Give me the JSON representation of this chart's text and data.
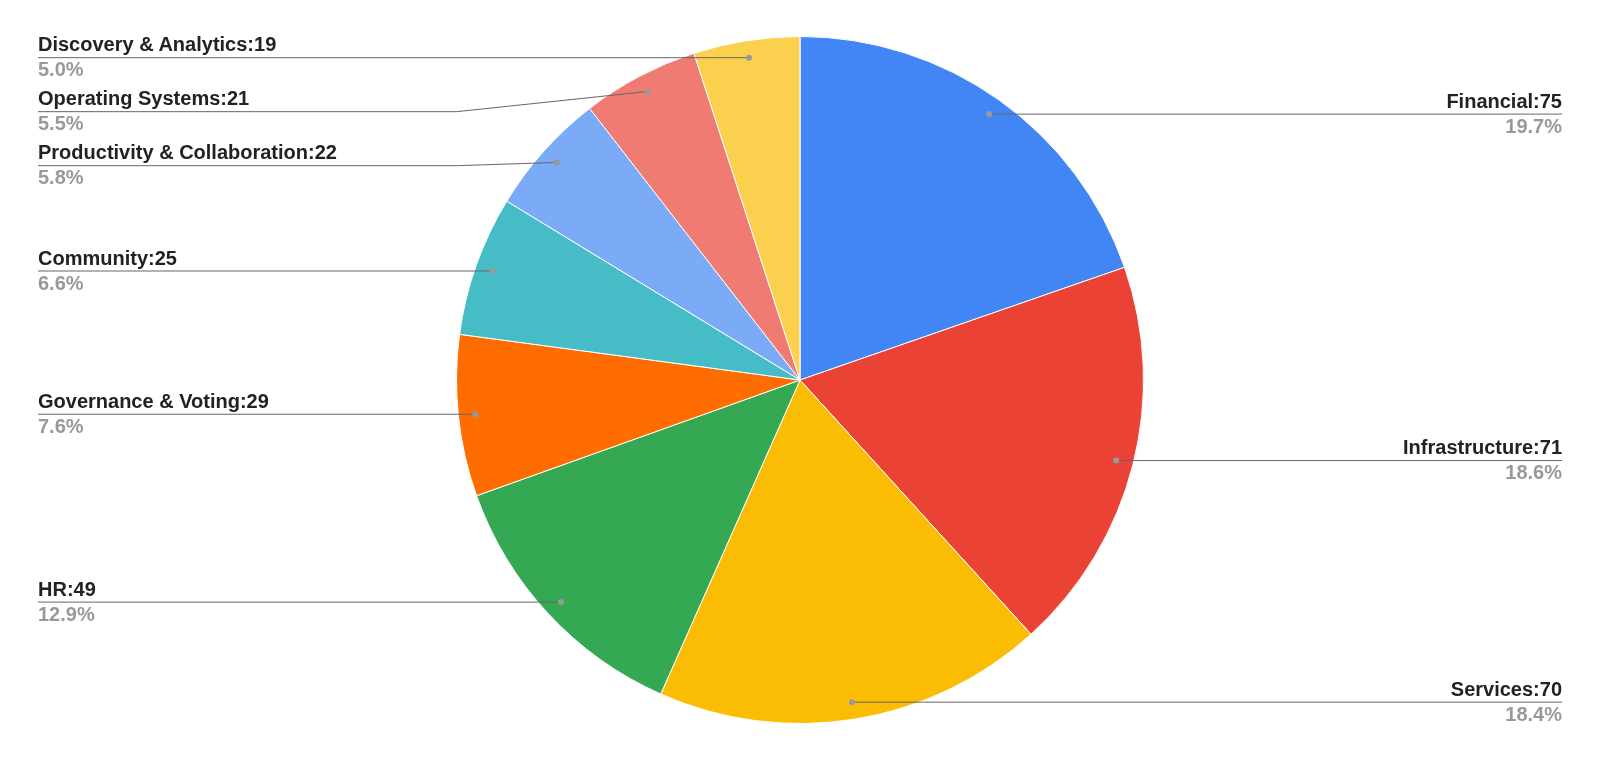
{
  "chart_data": {
    "type": "pie",
    "categories": [
      "Financial:75",
      "Infrastructure:71",
      "Services:70",
      "HR:49",
      "Governance & Voting:29",
      "Community:25",
      "Productivity & Collaboration:22",
      "Operating Systems:21",
      "Discovery & Analytics:19"
    ],
    "values": [
      19.7,
      18.6,
      18.4,
      12.9,
      7.6,
      6.6,
      5.8,
      5.5,
      5.0
    ],
    "colors": [
      "#4285f4",
      "#ea4335",
      "#fbbc04",
      "#34a853",
      "#ff6d01",
      "#46bdc6",
      "#7baaf7",
      "#f07b72",
      "#fcd04f"
    ],
    "value_labels": [
      "19.7%",
      "18.6%",
      "18.4%",
      "12.9%",
      "7.6%",
      "6.6%",
      "5.8%",
      "5.5%",
      "5.0%"
    ],
    "legend": false
  }
}
